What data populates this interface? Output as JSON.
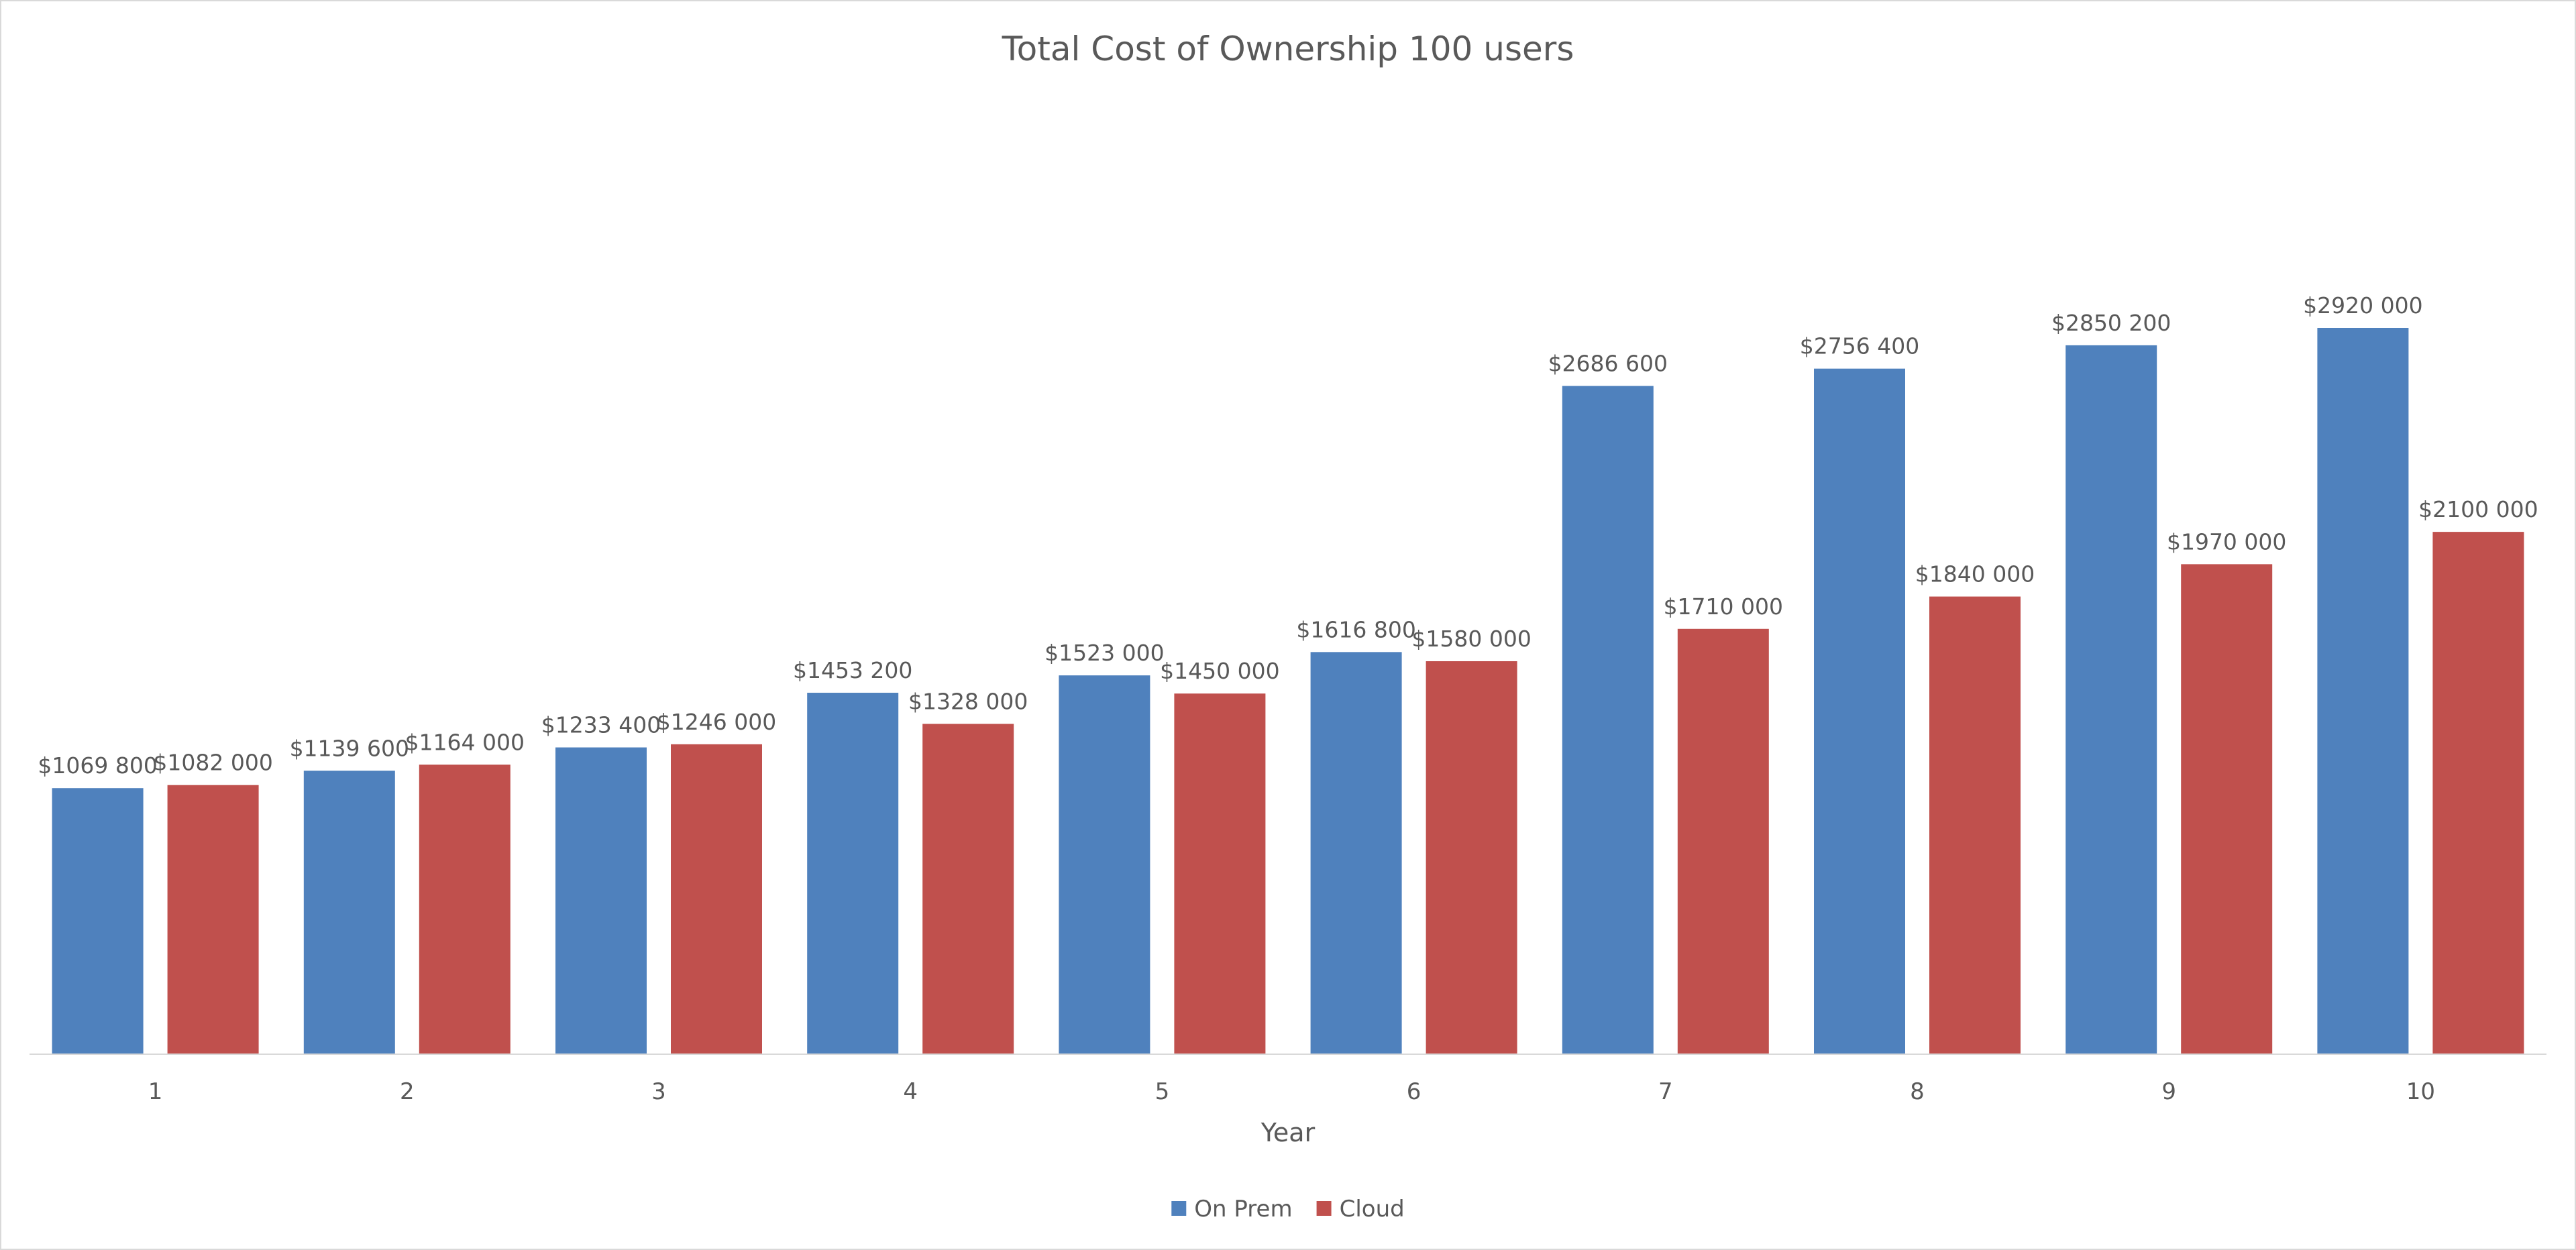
{
  "chart_data": {
    "type": "bar",
    "title": "Total Cost of Ownership 100 users",
    "xlabel": "Year",
    "ylabel": "",
    "ylim": [
      0,
      3000000
    ],
    "grid": false,
    "legend_position": "bottom",
    "categories": [
      "1",
      "2",
      "3",
      "4",
      "5",
      "6",
      "7",
      "8",
      "9",
      "10"
    ],
    "series": [
      {
        "name": "On Prem",
        "color": "#4F81BD",
        "values": [
          1069800,
          1139600,
          1233400,
          1453200,
          1523000,
          1616800,
          2686600,
          2756400,
          2850200,
          2920000
        ],
        "labels": [
          "$1069 800",
          "$1139 600",
          "$1233 400",
          "$1453 200",
          "$1523 000",
          "$1616 800",
          "$2686 600",
          "$2756 400",
          "$2850 200",
          "$2920 000"
        ]
      },
      {
        "name": "Cloud",
        "color": "#C0504D",
        "values": [
          1082000,
          1164000,
          1246000,
          1328000,
          1450000,
          1580000,
          1710000,
          1840000,
          1970000,
          2100000
        ],
        "labels": [
          "$1082 000",
          "$1164 000",
          "$1246 000",
          "$1328 000",
          "$1450 000",
          "$1580 000",
          "$1710 000",
          "$1840 000",
          "$1970 000",
          "$2100 000"
        ]
      }
    ]
  }
}
